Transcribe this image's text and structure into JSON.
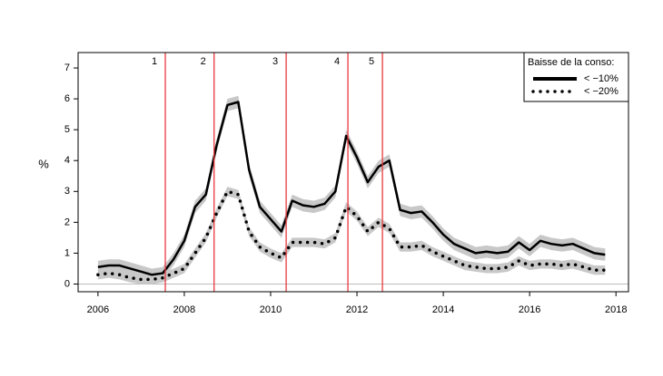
{
  "chart_data": {
    "type": "line",
    "ylabel": "%",
    "x": [
      2006.0,
      2006.25,
      2006.5,
      2006.75,
      2007.0,
      2007.25,
      2007.5,
      2007.75,
      2008.0,
      2008.25,
      2008.5,
      2008.75,
      2009.0,
      2009.25,
      2009.5,
      2009.75,
      2010.0,
      2010.25,
      2010.5,
      2010.75,
      2011.0,
      2011.25,
      2011.5,
      2011.75,
      2012.0,
      2012.25,
      2012.5,
      2012.75,
      2013.0,
      2013.25,
      2013.5,
      2013.75,
      2014.0,
      2014.25,
      2014.5,
      2014.75,
      2015.0,
      2015.25,
      2015.5,
      2015.75,
      2016.0,
      2016.25,
      2016.5,
      2016.75,
      2017.0,
      2017.25,
      2017.5,
      2017.75
    ],
    "series": [
      {
        "name": "< −10%",
        "color": "#000000",
        "style": "solid",
        "band": 0.2,
        "band_color": "#c8c8c8",
        "values": [
          0.55,
          0.6,
          0.6,
          0.5,
          0.4,
          0.3,
          0.35,
          0.8,
          1.4,
          2.5,
          2.9,
          4.5,
          5.8,
          5.9,
          3.7,
          2.5,
          2.1,
          1.7,
          2.7,
          2.55,
          2.5,
          2.6,
          3.0,
          4.8,
          4.1,
          3.3,
          3.8,
          4.0,
          2.4,
          2.3,
          2.35,
          2.0,
          1.6,
          1.3,
          1.15,
          1.0,
          1.05,
          1.0,
          1.05,
          1.35,
          1.1,
          1.4,
          1.3,
          1.25,
          1.3,
          1.15,
          1.0,
          0.95
        ]
      },
      {
        "name": "< −20%",
        "color": "#000000",
        "style": "dotted",
        "band": 0.15,
        "band_color": "#c8c8c8",
        "values": [
          0.3,
          0.35,
          0.3,
          0.2,
          0.15,
          0.15,
          0.2,
          0.35,
          0.5,
          1.0,
          1.5,
          2.3,
          3.0,
          2.9,
          1.7,
          1.2,
          1.0,
          0.85,
          1.35,
          1.35,
          1.35,
          1.3,
          1.5,
          2.5,
          2.2,
          1.7,
          2.0,
          1.8,
          1.2,
          1.2,
          1.25,
          1.05,
          0.9,
          0.75,
          0.6,
          0.55,
          0.5,
          0.5,
          0.55,
          0.75,
          0.6,
          0.65,
          0.65,
          0.6,
          0.65,
          0.55,
          0.45,
          0.45
        ]
      }
    ],
    "vlines": [
      {
        "x": 2007.56,
        "label": "1"
      },
      {
        "x": 2008.69,
        "label": "2"
      },
      {
        "x": 2010.36,
        "label": "3"
      },
      {
        "x": 2011.79,
        "label": "4"
      },
      {
        "x": 2012.59,
        "label": "5"
      }
    ],
    "vline_color": "#e8383d",
    "hline": 0,
    "xlim": [
      2005.54,
      2018.29
    ],
    "xticks": [
      2006,
      2008,
      2010,
      2012,
      2014,
      2016,
      2018
    ],
    "ylim": [
      -0.25,
      7.5
    ],
    "yticks": [
      0,
      1,
      2,
      3,
      4,
      5,
      6,
      7
    ],
    "legend_title": "Baisse de la conso:",
    "legend": "top-right"
  }
}
